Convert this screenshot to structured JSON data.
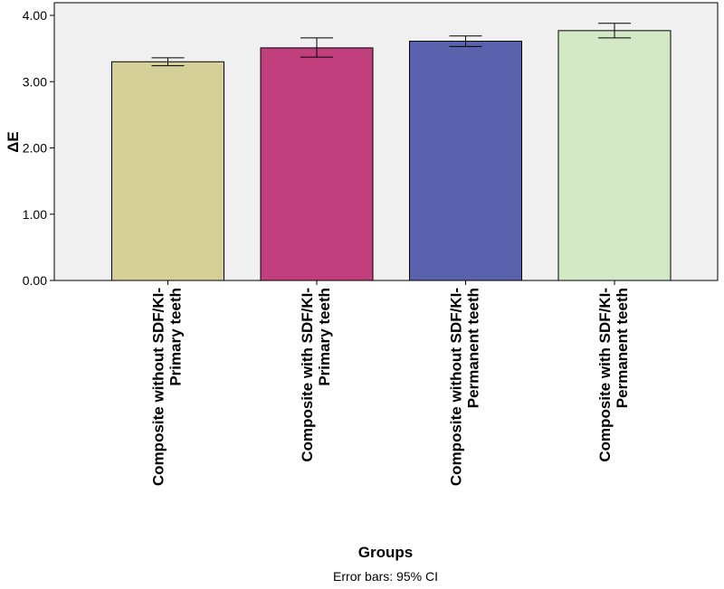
{
  "chart_data": {
    "type": "bar",
    "categories": [
      [
        "Composite without SDF/KI-",
        "Primary teeth"
      ],
      [
        "Composite with SDF/KI-",
        "Primary teeth"
      ],
      [
        "Composite without SDF/KI-",
        "Permanent teeth"
      ],
      [
        "Composite with SDF/KI-",
        "Permanent teeth"
      ]
    ],
    "values": [
      3.3,
      3.51,
      3.61,
      3.77
    ],
    "ci_lower": [
      3.24,
      3.37,
      3.53,
      3.66
    ],
    "ci_upper": [
      3.36,
      3.66,
      3.69,
      3.88
    ],
    "bar_colors": [
      "#d4d098",
      "#c03f7c",
      "#5a62ad",
      "#d3e8c4"
    ],
    "xlabel": "Groups",
    "ylabel": "ΔE",
    "ylim": [
      0,
      4
    ],
    "yticks": [
      0,
      1,
      2,
      3,
      4
    ],
    "ytick_labels": [
      "0.00",
      "1.00",
      "2.00",
      "3.00",
      "4.00"
    ],
    "footnote": "Error bars: 95% CI",
    "plot_background": "#f0f0f0",
    "grid": false
  }
}
